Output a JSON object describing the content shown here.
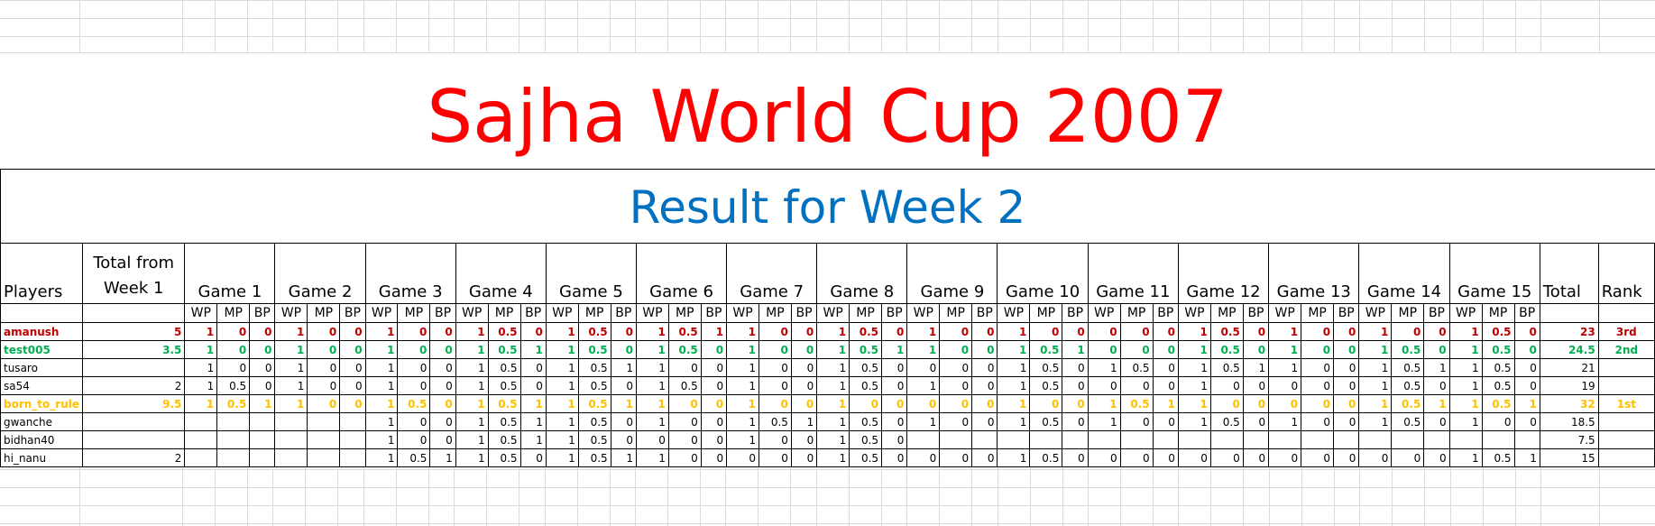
{
  "title": "Sajha World Cup 2007",
  "subtitle": "Result for Week 2",
  "colors": {
    "title": "#ff0000",
    "subtitle": "#0070c0",
    "rank_3rd": "#c00000",
    "rank_2nd": "#00b050",
    "rank_1st": "#ffc000"
  },
  "headers": {
    "players": "Players",
    "total_from": "Total from Week 1",
    "games": [
      "Game 1",
      "Game 2",
      "Game 3",
      "Game 4",
      "Game 5",
      "Game 6",
      "Game 7",
      "Game 8",
      "Game 9",
      "Game 10",
      "Game 11",
      "Game 12",
      "Game 13",
      "Game 14",
      "Game 15"
    ],
    "sub": [
      "WP",
      "MP",
      "BP"
    ],
    "total": "Total",
    "rank": "Rank"
  },
  "rows": [
    {
      "player": "amanush",
      "week1": "5",
      "games": [
        [
          "1",
          "0",
          "0"
        ],
        [
          "1",
          "0",
          "0"
        ],
        [
          "1",
          "0",
          "0"
        ],
        [
          "1",
          "0.5",
          "0"
        ],
        [
          "1",
          "0.5",
          "0"
        ],
        [
          "1",
          "0.5",
          "1"
        ],
        [
          "1",
          "0",
          "0"
        ],
        [
          "1",
          "0.5",
          "0"
        ],
        [
          "1",
          "0",
          "0"
        ],
        [
          "1",
          "0",
          "0"
        ],
        [
          "0",
          "0",
          "0"
        ],
        [
          "1",
          "0.5",
          "0"
        ],
        [
          "1",
          "0",
          "0"
        ],
        [
          "1",
          "0",
          "0"
        ],
        [
          "1",
          "0.5",
          "0"
        ]
      ],
      "total": "23",
      "rank": "3rd",
      "highlight": "red"
    },
    {
      "player": "test005",
      "week1": "3.5",
      "games": [
        [
          "1",
          "0",
          "0"
        ],
        [
          "1",
          "0",
          "0"
        ],
        [
          "1",
          "0",
          "0"
        ],
        [
          "1",
          "0.5",
          "1"
        ],
        [
          "1",
          "0.5",
          "0"
        ],
        [
          "1",
          "0.5",
          "0"
        ],
        [
          "1",
          "0",
          "0"
        ],
        [
          "1",
          "0.5",
          "1"
        ],
        [
          "1",
          "0",
          "0"
        ],
        [
          "1",
          "0.5",
          "1"
        ],
        [
          "0",
          "0",
          "0"
        ],
        [
          "1",
          "0.5",
          "0"
        ],
        [
          "1",
          "0",
          "0"
        ],
        [
          "1",
          "0.5",
          "0"
        ],
        [
          "1",
          "0.5",
          "0"
        ]
      ],
      "total": "24.5",
      "rank": "2nd",
      "highlight": "green"
    },
    {
      "player": "tusaro",
      "week1": "",
      "games": [
        [
          "1",
          "0",
          "0"
        ],
        [
          "1",
          "0",
          "0"
        ],
        [
          "1",
          "0",
          "0"
        ],
        [
          "1",
          "0.5",
          "0"
        ],
        [
          "1",
          "0.5",
          "1"
        ],
        [
          "1",
          "0",
          "0"
        ],
        [
          "1",
          "0",
          "0"
        ],
        [
          "1",
          "0.5",
          "0"
        ],
        [
          "0",
          "0",
          "0"
        ],
        [
          "1",
          "0.5",
          "0"
        ],
        [
          "1",
          "0.5",
          "0"
        ],
        [
          "1",
          "0.5",
          "1"
        ],
        [
          "1",
          "0",
          "0"
        ],
        [
          "1",
          "0.5",
          "1"
        ],
        [
          "1",
          "0.5",
          "0"
        ]
      ],
      "total": "21",
      "rank": "",
      "highlight": ""
    },
    {
      "player": "sa54",
      "week1": "2",
      "games": [
        [
          "1",
          "0.5",
          "0"
        ],
        [
          "1",
          "0",
          "0"
        ],
        [
          "1",
          "0",
          "0"
        ],
        [
          "1",
          "0.5",
          "0"
        ],
        [
          "1",
          "0.5",
          "0"
        ],
        [
          "1",
          "0.5",
          "0"
        ],
        [
          "1",
          "0",
          "0"
        ],
        [
          "1",
          "0.5",
          "0"
        ],
        [
          "1",
          "0",
          "0"
        ],
        [
          "1",
          "0.5",
          "0"
        ],
        [
          "0",
          "0",
          "0"
        ],
        [
          "1",
          "0",
          "0"
        ],
        [
          "0",
          "0",
          "0"
        ],
        [
          "1",
          "0.5",
          "0"
        ],
        [
          "1",
          "0.5",
          "0"
        ]
      ],
      "total": "19",
      "rank": "",
      "highlight": ""
    },
    {
      "player": "born_to_rule",
      "week1": "9.5",
      "games": [
        [
          "1",
          "0.5",
          "1"
        ],
        [
          "1",
          "0",
          "0"
        ],
        [
          "1",
          "0.5",
          "0"
        ],
        [
          "1",
          "0.5",
          "1"
        ],
        [
          "1",
          "0.5",
          "1"
        ],
        [
          "1",
          "0",
          "0"
        ],
        [
          "1",
          "0",
          "0"
        ],
        [
          "1",
          "0",
          "0"
        ],
        [
          "0",
          "0",
          "0"
        ],
        [
          "1",
          "0",
          "0"
        ],
        [
          "1",
          "0.5",
          "1"
        ],
        [
          "1",
          "0",
          "0"
        ],
        [
          "0",
          "0",
          "0"
        ],
        [
          "1",
          "0.5",
          "1"
        ],
        [
          "1",
          "0.5",
          "1"
        ]
      ],
      "total": "32",
      "rank": "1st",
      "highlight": "yellow"
    },
    {
      "player": "gwanche",
      "week1": "",
      "games": [
        [
          "",
          "",
          ""
        ],
        [
          "",
          "",
          ""
        ],
        [
          "1",
          "0",
          "0"
        ],
        [
          "1",
          "0.5",
          "1"
        ],
        [
          "1",
          "0.5",
          "0"
        ],
        [
          "1",
          "0",
          "0"
        ],
        [
          "1",
          "0.5",
          "1"
        ],
        [
          "1",
          "0.5",
          "0"
        ],
        [
          "1",
          "0",
          "0"
        ],
        [
          "1",
          "0.5",
          "0"
        ],
        [
          "1",
          "0",
          "0"
        ],
        [
          "1",
          "0.5",
          "0"
        ],
        [
          "1",
          "0",
          "0"
        ],
        [
          "1",
          "0.5",
          "0"
        ],
        [
          "1",
          "0",
          "0"
        ]
      ],
      "total": "18.5",
      "rank": "",
      "highlight": ""
    },
    {
      "player": "bidhan40",
      "week1": "",
      "games": [
        [
          "",
          "",
          ""
        ],
        [
          "",
          "",
          ""
        ],
        [
          "1",
          "0",
          "0"
        ],
        [
          "1",
          "0.5",
          "1"
        ],
        [
          "1",
          "0.5",
          "0"
        ],
        [
          "0",
          "0",
          "0"
        ],
        [
          "1",
          "0",
          "0"
        ],
        [
          "1",
          "0.5",
          "0"
        ],
        [
          "",
          "",
          ""
        ],
        [
          "",
          "",
          ""
        ],
        [
          "",
          "",
          ""
        ],
        [
          "",
          "",
          ""
        ],
        [
          "",
          "",
          ""
        ],
        [
          "",
          "",
          ""
        ],
        [
          "",
          "",
          ""
        ]
      ],
      "total": "7.5",
      "rank": "",
      "highlight": ""
    },
    {
      "player": "hi_nanu",
      "week1": "2",
      "games": [
        [
          "",
          "",
          ""
        ],
        [
          "",
          "",
          ""
        ],
        [
          "1",
          "0.5",
          "1"
        ],
        [
          "1",
          "0.5",
          "0"
        ],
        [
          "1",
          "0.5",
          "1"
        ],
        [
          "1",
          "0",
          "0"
        ],
        [
          "0",
          "0",
          "0"
        ],
        [
          "1",
          "0.5",
          "0"
        ],
        [
          "0",
          "0",
          "0"
        ],
        [
          "1",
          "0.5",
          "0"
        ],
        [
          "0",
          "0",
          "0"
        ],
        [
          "0",
          "0",
          "0"
        ],
        [
          "0",
          "0",
          "0"
        ],
        [
          "0",
          "0",
          "0"
        ],
        [
          "1",
          "0.5",
          "1"
        ]
      ],
      "total": "15",
      "rank": "",
      "highlight": ""
    }
  ]
}
